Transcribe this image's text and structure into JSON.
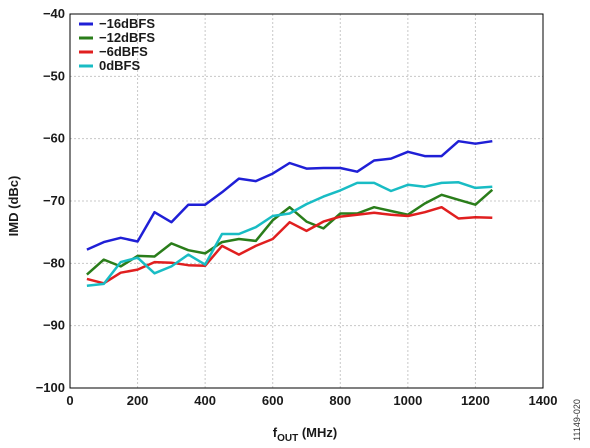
{
  "chart_data": {
    "type": "line",
    "xlabel_main": "f",
    "xlabel_sub": "OUT",
    "xlabel_unit": " (MHz)",
    "ylabel": "IMD (dBc)",
    "xlim": [
      0,
      1400
    ],
    "ylim": [
      -100,
      -40
    ],
    "xticks": [
      0,
      200,
      400,
      600,
      800,
      1000,
      1200,
      1400
    ],
    "yticks": [
      -40,
      -50,
      -60,
      -70,
      -80,
      -90,
      -100
    ],
    "xtick_labels": [
      "0",
      "200",
      "400",
      "600",
      "800",
      "1000",
      "1200",
      "1400"
    ],
    "ytick_labels": [
      "−40",
      "−50",
      "−60",
      "−70",
      "−80",
      "−90",
      "−100"
    ],
    "grid": true,
    "legend_position": "top-left",
    "series": [
      {
        "name": "−16dBFS",
        "color": "#1f1fd6",
        "x": [
          50,
          100,
          150,
          200,
          250,
          300,
          350,
          400,
          450,
          500,
          550,
          600,
          650,
          700,
          750,
          800,
          850,
          900,
          950,
          1000,
          1050,
          1100,
          1150,
          1200,
          1250
        ],
        "y": [
          -77.8,
          -76.6,
          -75.9,
          -76.5,
          -71.8,
          -73.4,
          -70.6,
          -70.6,
          -68.6,
          -66.4,
          -66.8,
          -65.6,
          -63.9,
          -64.8,
          -64.7,
          -64.7,
          -65.3,
          -63.5,
          -63.2,
          -62.1,
          -62.8,
          -62.8,
          -60.4,
          -60.8,
          -60.4
        ]
      },
      {
        "name": "−12dBFS",
        "color": "#2a7d1a",
        "x": [
          50,
          100,
          150,
          200,
          250,
          300,
          350,
          400,
          450,
          500,
          550,
          600,
          650,
          700,
          750,
          800,
          850,
          900,
          950,
          1000,
          1050,
          1100,
          1150,
          1200,
          1250
        ],
        "y": [
          -81.8,
          -79.4,
          -80.5,
          -78.8,
          -78.9,
          -76.8,
          -77.9,
          -78.4,
          -76.6,
          -76.1,
          -76.4,
          -73.1,
          -71.0,
          -73.3,
          -74.4,
          -72.0,
          -72.0,
          -71.0,
          -71.6,
          -72.2,
          -70.4,
          -69.0,
          -69.8,
          -70.6,
          -68.2
        ]
      },
      {
        "name": "−6dBFS",
        "color": "#e01f1f",
        "x": [
          50,
          100,
          150,
          200,
          250,
          300,
          350,
          400,
          450,
          500,
          550,
          600,
          650,
          700,
          750,
          800,
          850,
          900,
          950,
          1000,
          1050,
          1100,
          1150,
          1200,
          1250
        ],
        "y": [
          -82.5,
          -83.2,
          -81.5,
          -81.0,
          -79.8,
          -79.9,
          -80.3,
          -80.4,
          -77.2,
          -78.6,
          -77.2,
          -76.1,
          -73.4,
          -74.8,
          -73.3,
          -72.5,
          -72.2,
          -71.9,
          -72.2,
          -72.4,
          -71.8,
          -71.0,
          -72.8,
          -72.6,
          -72.7
        ]
      },
      {
        "name": "0dBFS",
        "color": "#19bcc4",
        "x": [
          50,
          100,
          150,
          200,
          250,
          300,
          350,
          400,
          450,
          500,
          550,
          600,
          650,
          700,
          750,
          800,
          850,
          900,
          950,
          1000,
          1050,
          1100,
          1150,
          1200,
          1250
        ],
        "y": [
          -83.6,
          -83.3,
          -79.8,
          -79.1,
          -81.6,
          -80.5,
          -78.6,
          -80.2,
          -75.3,
          -75.3,
          -74.2,
          -72.4,
          -72.0,
          -70.5,
          -69.3,
          -68.3,
          -67.1,
          -67.1,
          -68.4,
          -67.4,
          -67.7,
          -67.1,
          -67.0,
          -67.9,
          -67.7
        ]
      }
    ]
  },
  "figure_id": "11149-020"
}
